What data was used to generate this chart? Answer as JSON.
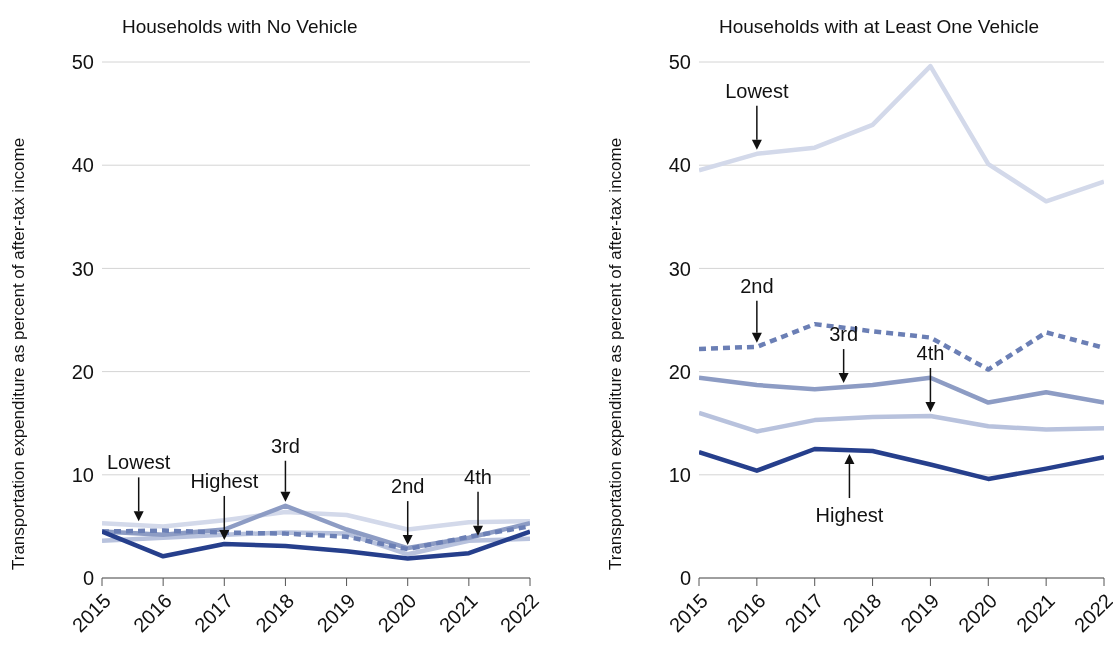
{
  "chart_data": [
    {
      "type": "line",
      "title": "Households with No Vehicle",
      "ylabel": "Transportation expenditure as percent of after-tax income",
      "x": [
        2015,
        2016,
        2017,
        2018,
        2019,
        2020,
        2021,
        2022
      ],
      "xlim": [
        2015,
        2022
      ],
      "xticks": [
        2015,
        2016,
        2017,
        2018,
        2019,
        2020,
        2021,
        2022
      ],
      "ylim": [
        0,
        50
      ],
      "yticks": [
        0,
        10,
        20,
        30,
        40,
        50
      ],
      "grid": "y",
      "series": [
        {
          "color": "#d3d9ea",
          "values": [
            5.3,
            5.0,
            5.6,
            6.4,
            6.1,
            4.7,
            5.4,
            5.5
          ]
        },
        {
          "color": "#b8c2dd",
          "values": [
            3.6,
            3.9,
            4.2,
            4.4,
            4.3,
            2.3,
            3.6,
            3.8
          ]
        },
        {
          "color": "#8d9cc4",
          "values": [
            4.5,
            4.2,
            4.7,
            7.0,
            4.7,
            2.9,
            3.9,
            5.3
          ]
        },
        {
          "color": "#6b7fb5",
          "line_style": "dashed",
          "values": [
            4.5,
            4.6,
            4.4,
            4.3,
            4.0,
            2.8,
            4.0,
            5.0
          ]
        },
        {
          "color": "#263f8c",
          "values": [
            4.5,
            2.1,
            3.3,
            3.1,
            2.6,
            1.9,
            2.4,
            4.5
          ]
        }
      ],
      "annotations": [
        {
          "text": "Lowest",
          "x": 2015.6,
          "y": 5.1
        },
        {
          "text": "Highest",
          "x": 2017,
          "y": 3.3
        },
        {
          "text": "3rd",
          "x": 2018,
          "y": 7.0
        },
        {
          "text": "2nd",
          "x": 2020,
          "y": 2.8
        },
        {
          "text": "4th",
          "x": 2021.15,
          "y": 3.7
        }
      ]
    },
    {
      "type": "line",
      "title": "Households with at Least One Vehicle",
      "ylabel": "Transportation expenditure as percent of after-tax income",
      "x": [
        2015,
        2016,
        2017,
        2018,
        2019,
        2020,
        2021,
        2022
      ],
      "xlim": [
        2015,
        2022
      ],
      "xticks": [
        2015,
        2016,
        2017,
        2018,
        2019,
        2020,
        2021,
        2022
      ],
      "ylim": [
        0,
        50
      ],
      "yticks": [
        0,
        10,
        20,
        30,
        40,
        50
      ],
      "grid": "y",
      "series": [
        {
          "color": "#d3d9ea",
          "values": [
            39.5,
            41.1,
            41.7,
            43.9,
            49.6,
            40.1,
            36.5,
            38.4
          ]
        },
        {
          "color": "#b8c2dd",
          "values": [
            16.0,
            14.2,
            15.3,
            15.6,
            15.7,
            14.7,
            14.4,
            14.5
          ]
        },
        {
          "color": "#8d9cc4",
          "values": [
            19.4,
            18.7,
            18.3,
            18.7,
            19.4,
            17.0,
            18.0,
            17.0
          ]
        },
        {
          "color": "#6b7fb5",
          "line_style": "dashed",
          "values": [
            22.2,
            22.4,
            24.6,
            23.9,
            23.3,
            20.2,
            23.8,
            22.3
          ]
        },
        {
          "color": "#263f8c",
          "values": [
            12.2,
            10.4,
            12.5,
            12.3,
            11.0,
            9.6,
            10.6,
            11.7
          ]
        }
      ],
      "annotations": [
        {
          "text": "Lowest",
          "x": 2016,
          "y": 41.1
        },
        {
          "text": "2nd",
          "x": 2016,
          "y": 22.4
        },
        {
          "text": "3rd",
          "x": 2017.5,
          "y": 18.5
        },
        {
          "text": "4th",
          "x": 2019,
          "y": 15.7
        },
        {
          "text": "Highest",
          "x": 2017.6,
          "y": 12.4
        }
      ]
    }
  ]
}
